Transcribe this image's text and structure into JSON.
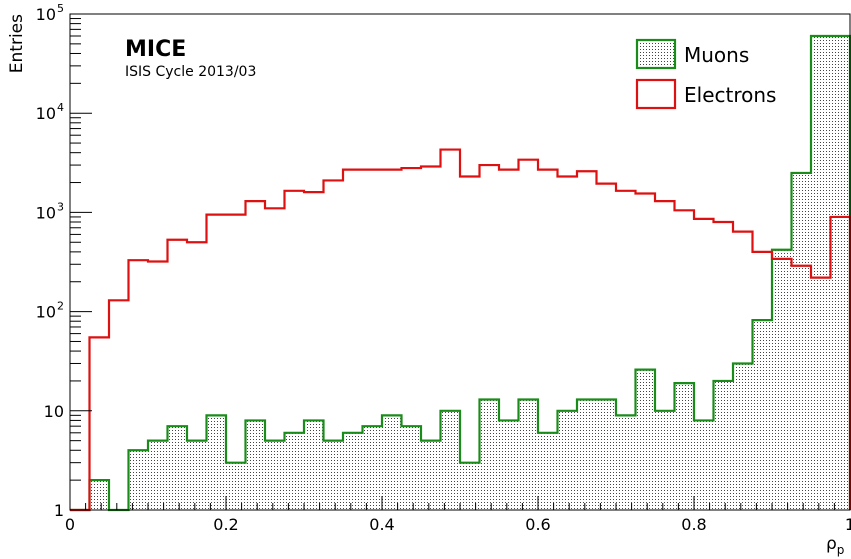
{
  "chart_data": {
    "type": "histogram",
    "title": "MICE",
    "subtitle": "ISIS Cycle 2013/03",
    "xlabel": "ρ",
    "xlabel_sub": "p",
    "ylabel": "Entries",
    "xlim": [
      0,
      1
    ],
    "ylim": [
      1,
      100000
    ],
    "yscale": "log",
    "bin_width": 0.025,
    "x_ticks": [
      {
        "value": 0,
        "label": "0"
      },
      {
        "value": 0.2,
        "label": "0.2"
      },
      {
        "value": 0.4,
        "label": "0.4"
      },
      {
        "value": 0.6,
        "label": "0.6"
      },
      {
        "value": 0.8,
        "label": "0.8"
      },
      {
        "value": 1,
        "label": "1"
      }
    ],
    "y_ticks": [
      {
        "value": 1,
        "label": "1",
        "exp": ""
      },
      {
        "value": 10,
        "label": "10",
        "exp": ""
      },
      {
        "value": 100,
        "label": "10",
        "exp": "2"
      },
      {
        "value": 1000,
        "label": "10",
        "exp": "3"
      },
      {
        "value": 10000,
        "label": "10",
        "exp": "4"
      },
      {
        "value": 100000,
        "label": "10",
        "exp": "5"
      }
    ],
    "legend": {
      "position": "top-right"
    },
    "series": [
      {
        "name": "Muons",
        "color": "#1a8c1a",
        "fill": "dotted-grey",
        "values": [
          1,
          2,
          1,
          4,
          5,
          7,
          5,
          9,
          3,
          8,
          5,
          6,
          8,
          5,
          6,
          7,
          9,
          7,
          5,
          10,
          3,
          13,
          8,
          13,
          6,
          10,
          13,
          13,
          9,
          26,
          10,
          19,
          8,
          20,
          30,
          82,
          420,
          2500,
          60000,
          60000
        ]
      },
      {
        "name": "Electrons",
        "color": "#dd1111",
        "fill": "none",
        "values": [
          1,
          55,
          130,
          330,
          320,
          530,
          500,
          950,
          950,
          1300,
          1100,
          1650,
          1600,
          2100,
          2700,
          2700,
          2700,
          2800,
          2900,
          4300,
          2300,
          3000,
          2700,
          3400,
          2700,
          2300,
          2600,
          1950,
          1650,
          1550,
          1300,
          1050,
          860,
          800,
          640,
          400,
          340,
          290,
          220,
          900
        ]
      }
    ]
  }
}
